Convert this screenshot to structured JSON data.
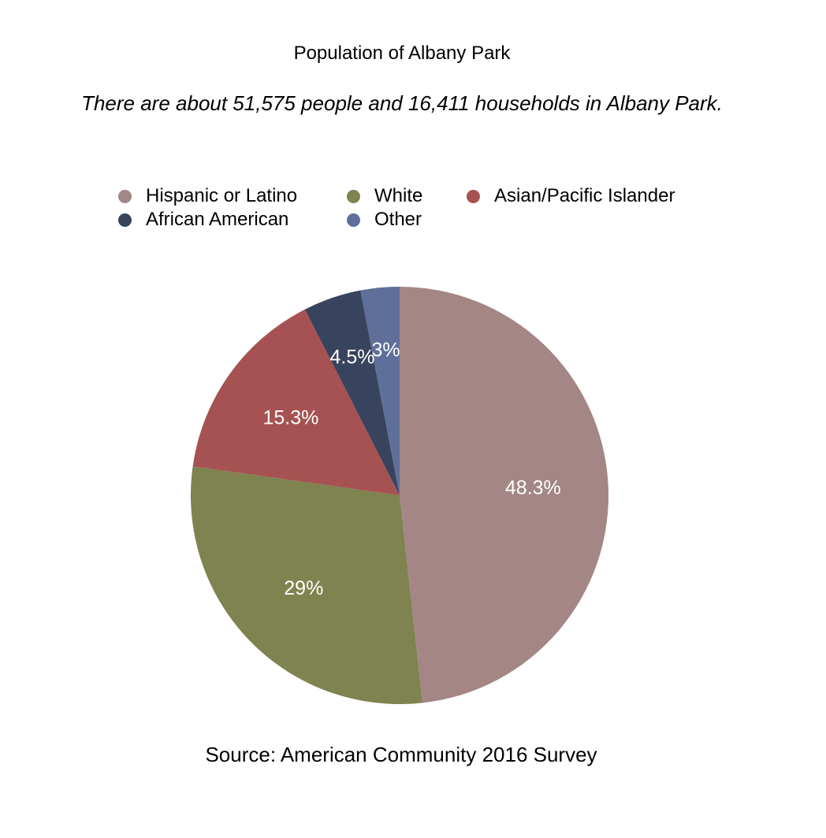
{
  "chart_data": {
    "type": "pie",
    "title": "Population of Albany Park",
    "subtitle": "There are about 51,575 people and 16,411 households in Albany Park.",
    "source": "Source: American Community 2016 Survey",
    "legend_placement": "top",
    "slices": [
      {
        "name": "Hispanic or Latino",
        "value": 48.3,
        "label": "48.3%",
        "color": "#a38685"
      },
      {
        "name": "White",
        "value": 29,
        "label": "29%",
        "color": "#7f834f"
      },
      {
        "name": "Asian/Pacific Islander",
        "value": 15.3,
        "label": "15.3%",
        "color": "#a65252"
      },
      {
        "name": "African American",
        "value": 4.5,
        "label": "4.5%",
        "color": "#38435d"
      },
      {
        "name": "Other",
        "value": 3,
        "label": "3%",
        "color": "#5f6f99"
      }
    ]
  }
}
